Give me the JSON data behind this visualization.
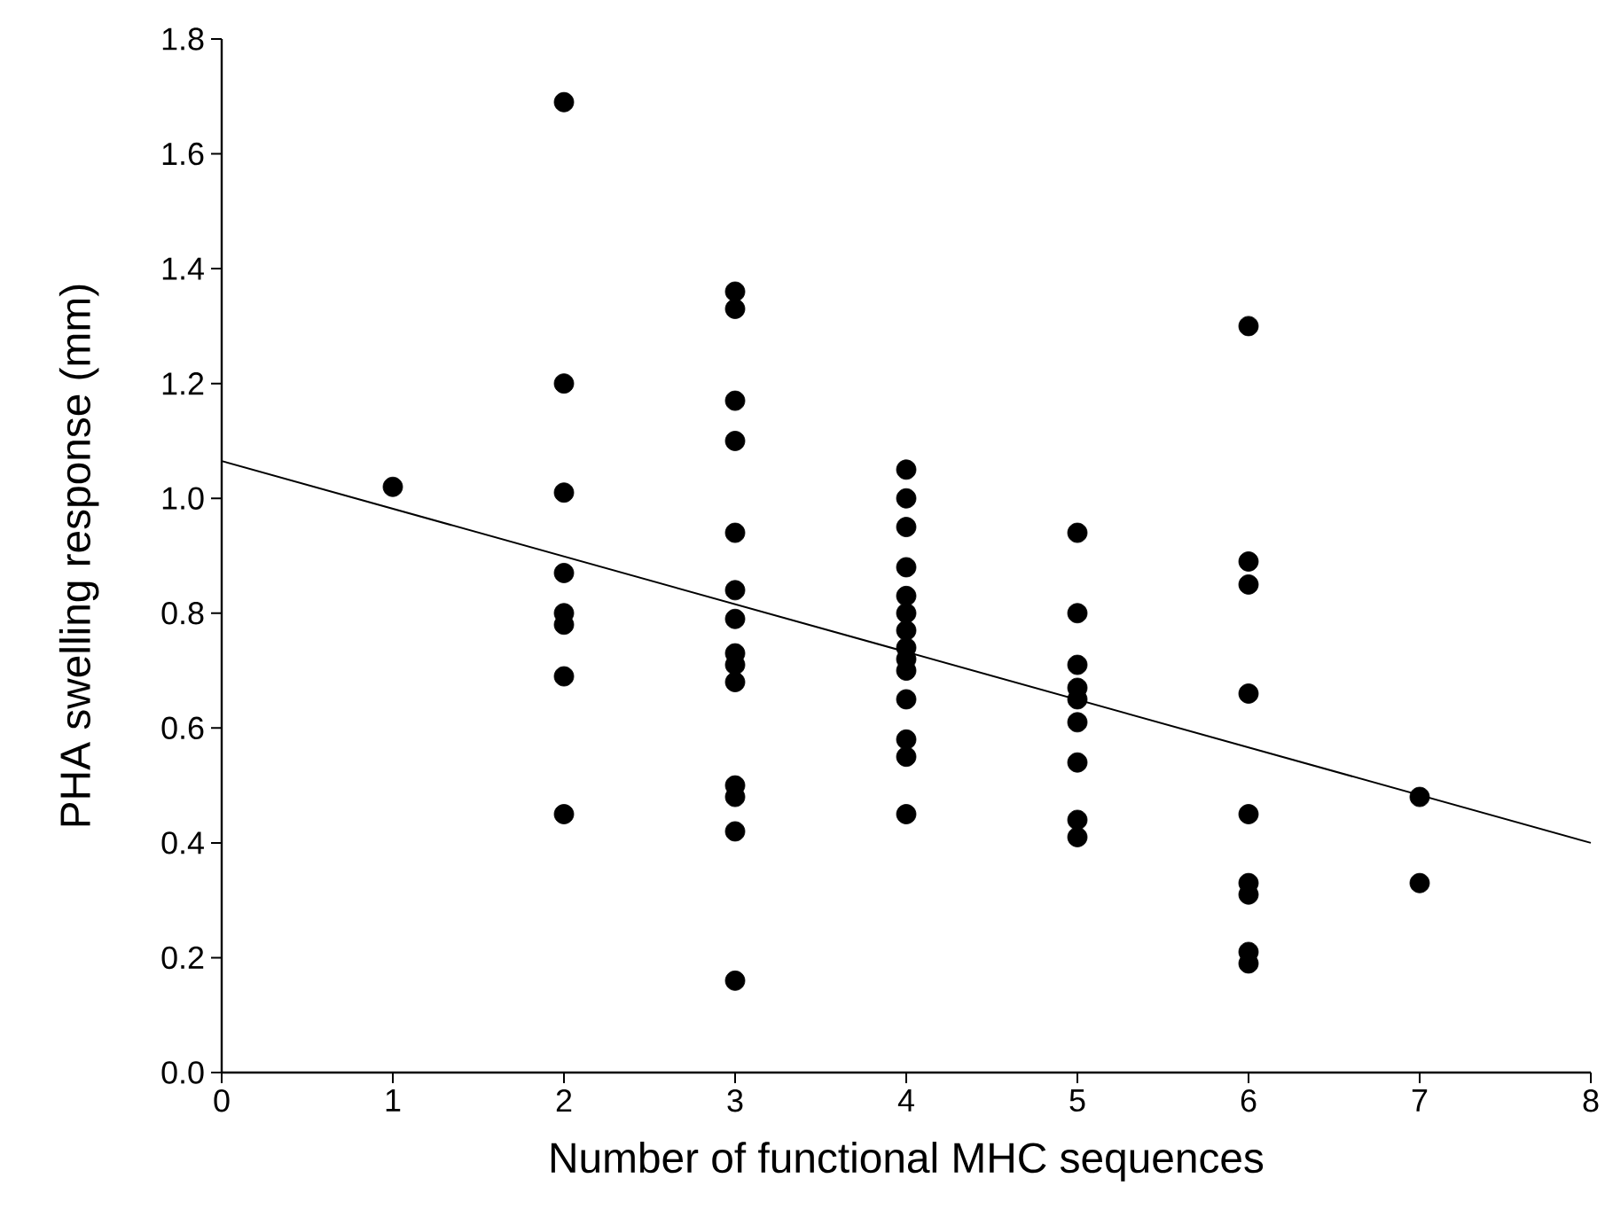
{
  "chart_data": {
    "type": "scatter",
    "xlabel": "Number of functional MHC sequences",
    "ylabel": "PHA swelling response (mm)",
    "xlim": [
      0,
      8
    ],
    "xticks": [
      0,
      1,
      2,
      3,
      4,
      5,
      6,
      7,
      8
    ],
    "ylim": [
      0,
      1.8
    ],
    "yticks": [
      {
        "value": 0,
        "label": "0.0"
      },
      0.2,
      0.4,
      0.6,
      0.8,
      {
        "value": 1,
        "label": "1.0"
      },
      1.2,
      1.4,
      1.6,
      1.8
    ],
    "grid": false,
    "marker": "circle",
    "series": [
      {
        "color": "#000000",
        "x": [
          1,
          2,
          2,
          2,
          2,
          2,
          2,
          2,
          2,
          3,
          3,
          3,
          3,
          3,
          3,
          3,
          3,
          3,
          3,
          3,
          3,
          3,
          3,
          4,
          4,
          4,
          4,
          4,
          4,
          4,
          4,
          4,
          4,
          4,
          4,
          4,
          4,
          5,
          5,
          5,
          5,
          5,
          5,
          5,
          5,
          5,
          6,
          6,
          6,
          6,
          6,
          6,
          6,
          6,
          6,
          7,
          7
        ],
        "values": [
          1.02,
          1.69,
          1.2,
          1.01,
          0.87,
          0.8,
          0.78,
          0.69,
          0.45,
          1.36,
          1.33,
          1.17,
          1.1,
          0.94,
          0.84,
          0.79,
          0.73,
          0.71,
          0.68,
          0.5,
          0.48,
          0.42,
          0.16,
          1.05,
          1.0,
          0.95,
          0.88,
          0.83,
          0.8,
          0.77,
          0.74,
          0.72,
          0.7,
          0.65,
          0.58,
          0.55,
          0.45,
          0.94,
          0.8,
          0.71,
          0.67,
          0.65,
          0.61,
          0.54,
          0.44,
          0.41,
          1.3,
          0.89,
          0.85,
          0.66,
          0.45,
          0.33,
          0.31,
          0.21,
          0.19,
          0.48,
          0.33
        ]
      },
      {
        "type": "line",
        "color": "#000000",
        "x": [
          0,
          8
        ],
        "values": [
          1.065,
          0.4
        ],
        "marker": "none",
        "line_style": "solid"
      }
    ]
  }
}
